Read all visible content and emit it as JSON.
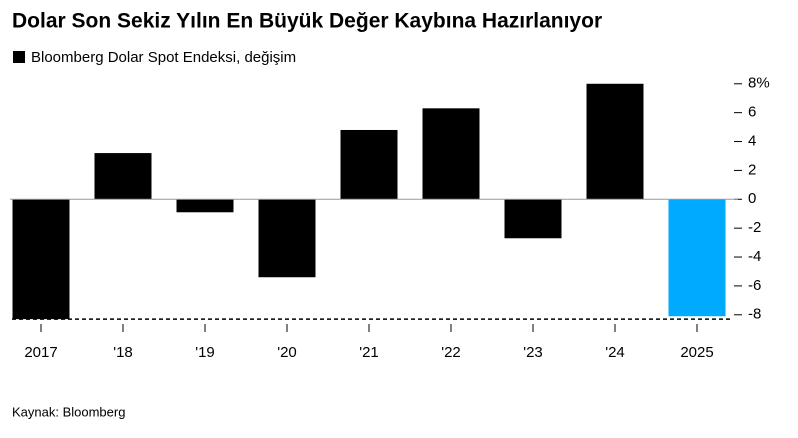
{
  "chart_data": {
    "type": "bar",
    "title": "Dolar Son Sekiz Yılın En Büyük Değer Kaybına Hazırlanıyor",
    "source": "Kaynak: Bloomberg",
    "categories": [
      "2017",
      "'18",
      "'19",
      "'20",
      "'21",
      "'22",
      "'23",
      "'24",
      "2025"
    ],
    "series": [
      {
        "name": "Bloomberg Dolar Spot Endeksi, değişim",
        "color": "#000000",
        "values": [
          -8.3,
          3.2,
          -0.9,
          -5.4,
          4.8,
          6.3,
          -2.7,
          8.0,
          -8.1
        ]
      }
    ],
    "bar_colors": [
      "#000000",
      "#000000",
      "#000000",
      "#000000",
      "#000000",
      "#000000",
      "#000000",
      "#000000",
      "#00aaff"
    ],
    "reference_line": -8.3,
    "ylim": [
      -8.5,
      8.4
    ],
    "yticks": [
      -8,
      -6,
      -4,
      -2,
      0,
      2,
      4,
      6,
      {
        "value": 8,
        "label": "8%"
      }
    ],
    "grid": false
  }
}
